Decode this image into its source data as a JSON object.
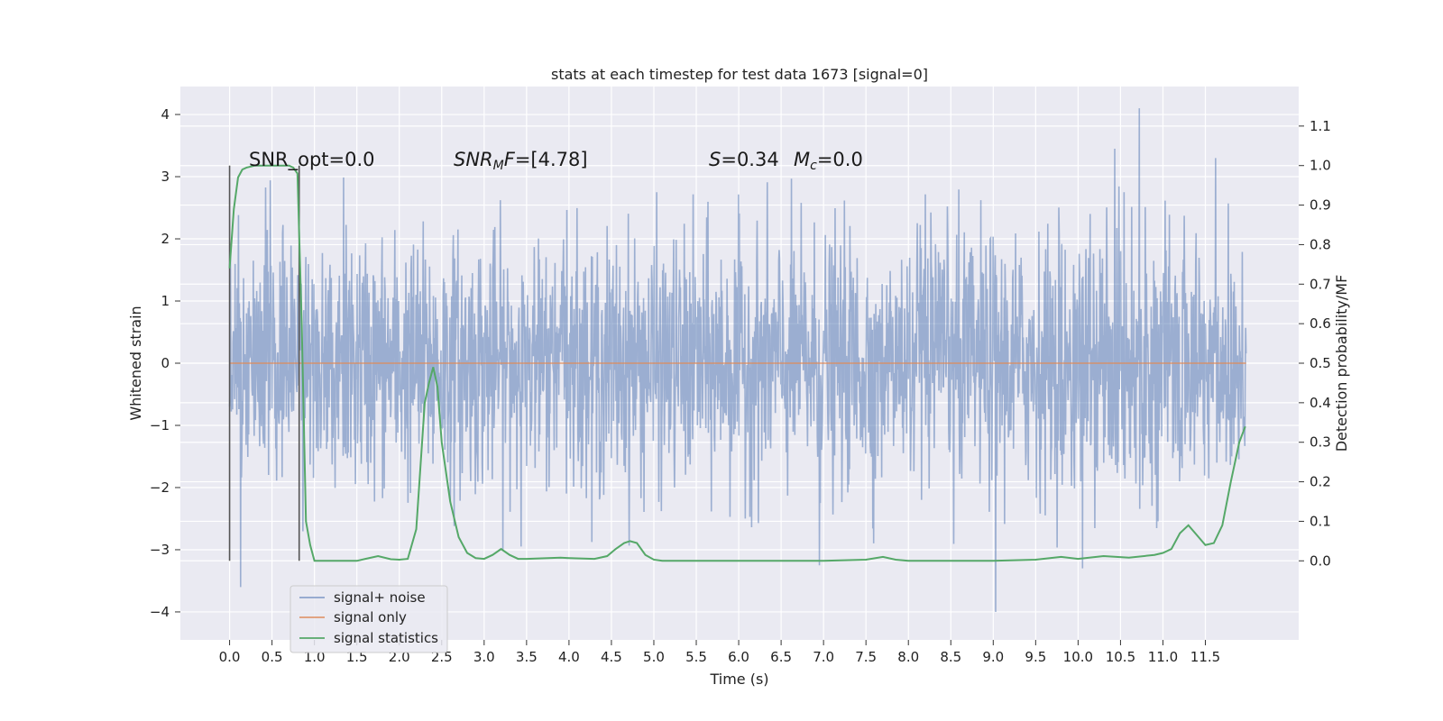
{
  "chart_data": {
    "type": "line",
    "title": "stats at each timestep for test data 1673 [signal=0]",
    "xlabel": "Time (s)",
    "ylabel": "Whitened strain",
    "y2label": "Detection probability/MF",
    "xlim": [
      -0.58,
      12.6
    ],
    "ylim": [
      -4.45,
      4.45
    ],
    "y2lim": [
      -0.2,
      1.2
    ],
    "xticks": [
      "0.0",
      "0.5",
      "1.0",
      "1.5",
      "2.0",
      "2.5",
      "3.0",
      "3.5",
      "4.0",
      "4.5",
      "5.0",
      "5.5",
      "6.0",
      "6.5",
      "7.0",
      "7.5",
      "8.0",
      "8.5",
      "9.0",
      "9.5",
      "10.0",
      "10.5",
      "11.0",
      "11.5"
    ],
    "yticks": [
      "4",
      "3",
      "2",
      "1",
      "0",
      "−1",
      "−2",
      "−3",
      "−4"
    ],
    "y2ticks": [
      "1.1",
      "1.0",
      "0.9",
      "0.8",
      "0.7",
      "0.6",
      "0.5",
      "0.4",
      "0.3",
      "0.2",
      "0.1",
      "0.0"
    ],
    "grid": true,
    "legend_position": "lower-left",
    "colors": {
      "noise": "#4c72b0",
      "signal": "#dd8452",
      "stats": "#55a868",
      "background": "#eaeaf2",
      "grid": "#ffffff",
      "marker": "#555555"
    },
    "annotations": {
      "snr_opt": "SNR_opt=0.0",
      "snr_mf": "=[4.78]",
      "snr_mf_base": "SNR",
      "snr_mf_sub": "M",
      "snr_mf_tail": "F",
      "s_value": "=0.34",
      "s_symbol": "S",
      "mc_symbol": "M",
      "mc_sub": "c",
      "mc_value": "=0.0"
    },
    "window_markers_x": [
      0.0,
      0.82
    ],
    "series": [
      {
        "name": "signal+ noise",
        "x_range": [
          0.0,
          11.98
        ],
        "amplitude_std": 1.0,
        "notable_extremes": [
          {
            "x": 10.72,
            "y": 4.1
          },
          {
            "x": 10.43,
            "y": 3.45
          },
          {
            "x": 11.62,
            "y": 3.3
          },
          {
            "x": 9.03,
            "y": -4.0
          },
          {
            "x": 0.13,
            "y": -3.6
          },
          {
            "x": 10.05,
            "y": -3.3
          },
          {
            "x": 6.95,
            "y": -3.25
          }
        ]
      },
      {
        "name": "signal only",
        "x": [
          0.0,
          11.98
        ],
        "y": [
          0.0,
          0.0
        ]
      },
      {
        "name": "signal statistics",
        "axis": "right",
        "x": [
          0.0,
          0.05,
          0.1,
          0.15,
          0.2,
          0.3,
          0.4,
          0.5,
          0.6,
          0.7,
          0.75,
          0.8,
          0.85,
          0.9,
          0.95,
          1.0,
          1.5,
          1.6,
          1.75,
          1.9,
          2.0,
          2.1,
          2.2,
          2.3,
          2.35,
          2.4,
          2.45,
          2.5,
          2.6,
          2.7,
          2.8,
          2.9,
          3.0,
          3.1,
          3.2,
          3.3,
          3.4,
          3.5,
          3.9,
          4.0,
          4.3,
          4.45,
          4.55,
          4.65,
          4.72,
          4.8,
          4.9,
          5.0,
          5.1,
          5.5,
          6.0,
          7.0,
          7.5,
          7.7,
          7.85,
          8.0,
          9.0,
          9.5,
          9.8,
          10.0,
          10.3,
          10.6,
          10.9,
          11.0,
          11.1,
          11.2,
          11.3,
          11.4,
          11.5,
          11.6,
          11.7,
          11.8,
          11.9,
          11.97
        ],
        "y": [
          0.74,
          0.89,
          0.97,
          0.99,
          0.995,
          1.0,
          1.0,
          1.0,
          1.0,
          1.0,
          0.995,
          0.98,
          0.6,
          0.1,
          0.04,
          0.0,
          0.0,
          0.005,
          0.012,
          0.004,
          0.003,
          0.005,
          0.08,
          0.4,
          0.45,
          0.49,
          0.44,
          0.3,
          0.15,
          0.06,
          0.02,
          0.007,
          0.005,
          0.015,
          0.03,
          0.015,
          0.005,
          0.005,
          0.008,
          0.007,
          0.005,
          0.012,
          0.03,
          0.045,
          0.05,
          0.045,
          0.015,
          0.003,
          0.0,
          0.0,
          0.0,
          0.0,
          0.003,
          0.01,
          0.003,
          0.0,
          0.0,
          0.003,
          0.01,
          0.005,
          0.012,
          0.008,
          0.015,
          0.02,
          0.03,
          0.07,
          0.09,
          0.065,
          0.04,
          0.045,
          0.09,
          0.2,
          0.3,
          0.34
        ]
      }
    ]
  }
}
